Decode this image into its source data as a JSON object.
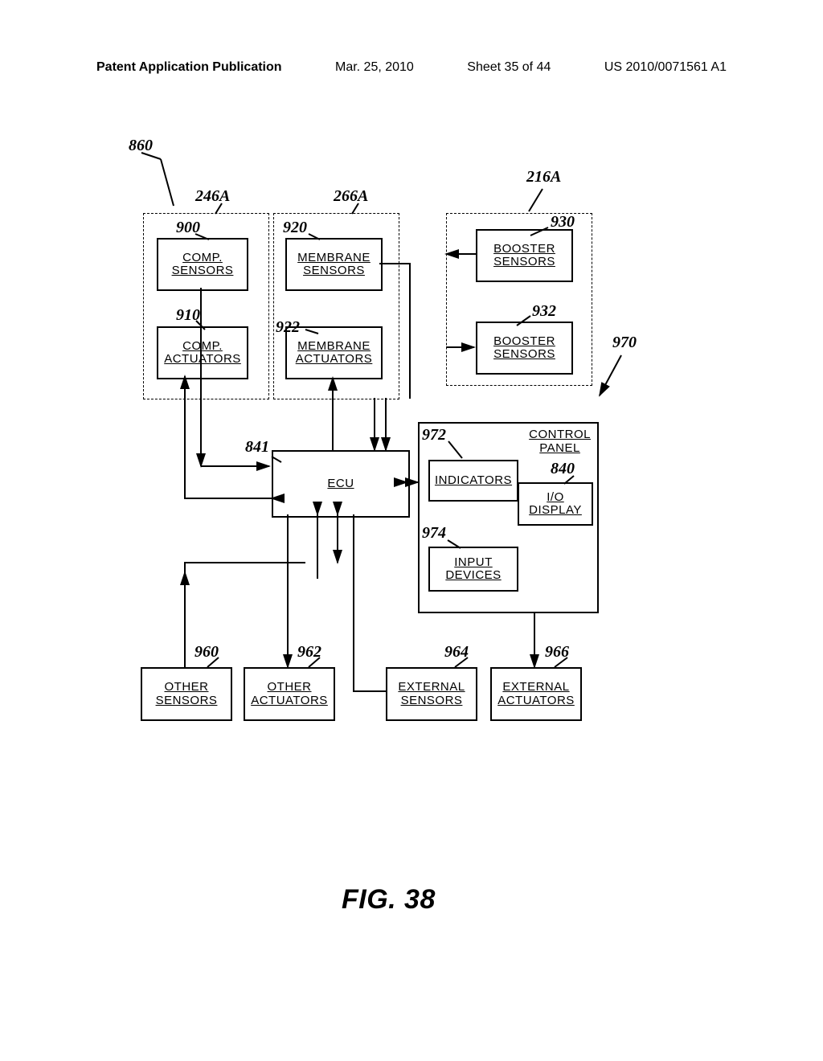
{
  "header": {
    "left": "Patent Application Publication",
    "date": "Mar. 25, 2010",
    "sheet": "Sheet 35 of 44",
    "pubno": "US 2010/0071561 A1"
  },
  "blocks": {
    "comp_sensors": "COMP.\nSENSORS",
    "comp_actuators": "COMP.\nACTUATORS",
    "membrane_sensors": "MEMBRANE\nSENSORS",
    "membrane_actuators": "MEMBRANE\nACTUATORS",
    "booster_sensors1": "BOOSTER\nSENSORS",
    "booster_sensors2": "BOOSTER\nSENSORS",
    "ecu": "ECU",
    "indicators": "INDICATORS",
    "io_display": "I/O\nDISPLAY",
    "input_devices": "INPUT\nDEVICES",
    "control_panel": "CONTROL\nPANEL",
    "other_sensors": "OTHER\nSENSORS",
    "other_actuators": "OTHER\nACTUATORS",
    "external_sensors": "EXTERNAL\nSENSORS",
    "external_actuators": "EXTERNAL\nACTUATORS"
  },
  "figlabel": "FIG. 38",
  "refs": {
    "r860": "860",
    "r246A": "246A",
    "r266A": "266A",
    "r216A": "216A",
    "r900": "900",
    "r910": "910",
    "r920": "920",
    "r922": "922",
    "r930": "930",
    "r932": "932",
    "r970": "970",
    "r841": "841",
    "r972": "972",
    "r974": "974",
    "r840": "840",
    "r960": "960",
    "r962": "962",
    "r964": "964",
    "r966": "966"
  }
}
